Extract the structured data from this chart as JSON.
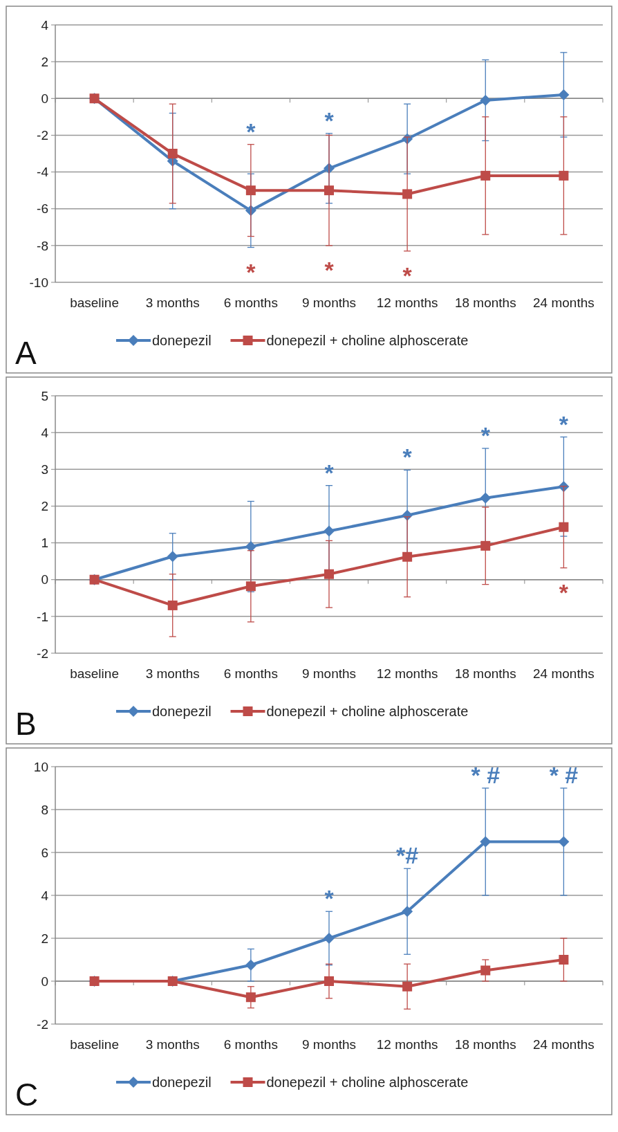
{
  "chart_data": [
    {
      "type": "line",
      "categories": [
        "baseline",
        "3 months",
        "6 months",
        "9 months",
        "12 months",
        "18 months",
        "24 months"
      ],
      "ylim": [
        -10,
        4
      ],
      "yticks": [
        -10,
        -8,
        -6,
        -4,
        -2,
        0,
        2,
        4
      ],
      "grid": "y",
      "legend": "bottom",
      "line_style": "solid",
      "series": [
        {
          "name": "donepezil",
          "color": "#4a7ebb",
          "marker": "diamond",
          "values": [
            0,
            -3.4,
            -6.1,
            -3.8,
            -2.2,
            -0.1,
            0.2
          ],
          "errors": [
            null,
            2.6,
            2.0,
            1.9,
            1.9,
            2.2,
            2.3
          ]
        },
        {
          "name": "donepezil + choline alphoscerate",
          "color": "#be4b48",
          "marker": "square",
          "values": [
            0,
            -3.0,
            -5.0,
            -5.0,
            -5.2,
            -4.2,
            -4.2
          ],
          "errors": [
            null,
            2.7,
            2.5,
            3.0,
            3.1,
            3.2,
            3.2
          ]
        }
      ],
      "annotations": [
        "A",
        {
          "text": "*",
          "x": "6 months",
          "y": -6.1
        },
        {
          "text": "*",
          "x": "9 months",
          "y": -3.8
        },
        {
          "text": "*",
          "x": "6 months",
          "y": -5.0
        },
        {
          "text": "*",
          "x": "9 months",
          "y": -5.0
        },
        {
          "text": "*",
          "x": "12 months",
          "y": -5.2
        }
      ]
    },
    {
      "type": "line",
      "categories": [
        "baseline",
        "3 months",
        "6 months",
        "9 months",
        "12 months",
        "18 months",
        "24 months"
      ],
      "ylim": [
        -2,
        5
      ],
      "yticks": [
        -2,
        -1,
        0,
        1,
        2,
        3,
        4,
        5
      ],
      "grid": "y",
      "legend": "bottom",
      "line_style": "solid",
      "series": [
        {
          "name": "donepezil",
          "color": "#4a7ebb",
          "marker": "diamond",
          "values": [
            0,
            0.63,
            0.9,
            1.32,
            1.75,
            2.22,
            2.53
          ],
          "errors": [
            null,
            0.63,
            1.23,
            1.24,
            1.23,
            1.35,
            1.35
          ]
        },
        {
          "name": "donepezil + choline alphoscerate",
          "color": "#be4b48",
          "marker": "square",
          "values": [
            0,
            -0.7,
            -0.18,
            0.15,
            0.62,
            0.92,
            1.43
          ],
          "errors": [
            null,
            0.85,
            0.97,
            0.91,
            1.09,
            1.05,
            1.11
          ]
        }
      ],
      "annotations": [
        "B",
        {
          "text": "*",
          "x": "9 months",
          "y": 1.32
        },
        {
          "text": "*",
          "x": "12 months",
          "y": 1.75
        },
        {
          "text": "*",
          "x": "18 months",
          "y": 2.22
        },
        {
          "text": "*",
          "x": "24 months",
          "y": 2.53
        },
        {
          "text": "*",
          "x": "24 months",
          "y": 1.43
        }
      ]
    },
    {
      "type": "line",
      "categories": [
        "baseline",
        "3 months",
        "6 months",
        "9 months",
        "12 months",
        "18 months",
        "24 months"
      ],
      "ylim": [
        -2,
        10
      ],
      "yticks": [
        -2,
        0,
        2,
        4,
        6,
        8,
        10
      ],
      "grid": "y",
      "legend": "bottom",
      "line_style": "solid",
      "series": [
        {
          "name": "donepezil",
          "color": "#4a7ebb",
          "marker": "diamond",
          "values": [
            0,
            0,
            0.75,
            2.0,
            3.25,
            6.5,
            6.5
          ],
          "errors": [
            null,
            null,
            0.75,
            1.25,
            2.0,
            2.5,
            2.5
          ]
        },
        {
          "name": "donepezil + choline alphoscerate",
          "color": "#be4b48",
          "marker": "square",
          "values": [
            0,
            0,
            -0.75,
            0,
            -0.25,
            0.5,
            1.0
          ],
          "errors": [
            null,
            null,
            0.5,
            0.8,
            1.05,
            0.5,
            1.0
          ]
        }
      ],
      "annotations": [
        "C",
        {
          "text": "*",
          "x": "9 months",
          "y": 2.0
        },
        {
          "text": "*#",
          "x": "12 months",
          "y": 3.25
        },
        {
          "text": "* #",
          "x": "18 months",
          "y": 6.5
        },
        {
          "text": "* #",
          "x": "24 months",
          "y": 6.5
        }
      ]
    }
  ]
}
